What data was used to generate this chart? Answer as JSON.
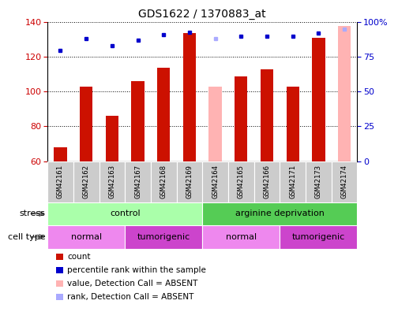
{
  "title": "GDS1622 / 1370883_at",
  "samples": [
    "GSM42161",
    "GSM42162",
    "GSM42163",
    "GSM42167",
    "GSM42168",
    "GSM42169",
    "GSM42164",
    "GSM42165",
    "GSM42166",
    "GSM42171",
    "GSM42173",
    "GSM42174"
  ],
  "count_values": [
    68,
    103,
    86,
    106,
    114,
    134,
    null,
    109,
    113,
    103,
    131,
    null
  ],
  "absent_values": [
    null,
    null,
    null,
    null,
    null,
    null,
    103,
    null,
    null,
    null,
    null,
    138
  ],
  "percentile_rank": [
    80,
    88,
    83,
    87,
    91,
    93,
    null,
    90,
    90,
    90,
    92,
    null
  ],
  "absent_rank": [
    null,
    null,
    null,
    null,
    null,
    null,
    88,
    null,
    null,
    null,
    null,
    95
  ],
  "ylim_left": [
    60,
    140
  ],
  "ylim_right": [
    0,
    100
  ],
  "yticks_left": [
    60,
    80,
    100,
    120,
    140
  ],
  "yticks_right": [
    0,
    25,
    50,
    75,
    100
  ],
  "ylabel_left_color": "#cc0000",
  "ylabel_right_color": "#0000cc",
  "bar_color_count": "#cc1100",
  "bar_color_absent": "#ffb3b3",
  "dot_color_rank": "#0000cc",
  "dot_color_absent_rank": "#aaaaff",
  "stress_groups": [
    {
      "label": "control",
      "start": 0,
      "end": 6,
      "color": "#aaffaa"
    },
    {
      "label": "arginine deprivation",
      "start": 6,
      "end": 12,
      "color": "#55cc55"
    }
  ],
  "cell_type_groups": [
    {
      "label": "normal",
      "start": 0,
      "end": 3,
      "color": "#ee88ee"
    },
    {
      "label": "tumorigenic",
      "start": 3,
      "end": 6,
      "color": "#cc44cc"
    },
    {
      "label": "normal",
      "start": 6,
      "end": 9,
      "color": "#ee88ee"
    },
    {
      "label": "tumorigenic",
      "start": 9,
      "end": 12,
      "color": "#cc44cc"
    }
  ],
  "legend_items": [
    {
      "label": "count",
      "color": "#cc1100"
    },
    {
      "label": "percentile rank within the sample",
      "color": "#0000cc"
    },
    {
      "label": "value, Detection Call = ABSENT",
      "color": "#ffb3b3"
    },
    {
      "label": "rank, Detection Call = ABSENT",
      "color": "#aaaaff"
    }
  ],
  "plot_bg": "#ffffff",
  "bar_width": 0.5,
  "xlim": [
    -0.5,
    11.5
  ]
}
